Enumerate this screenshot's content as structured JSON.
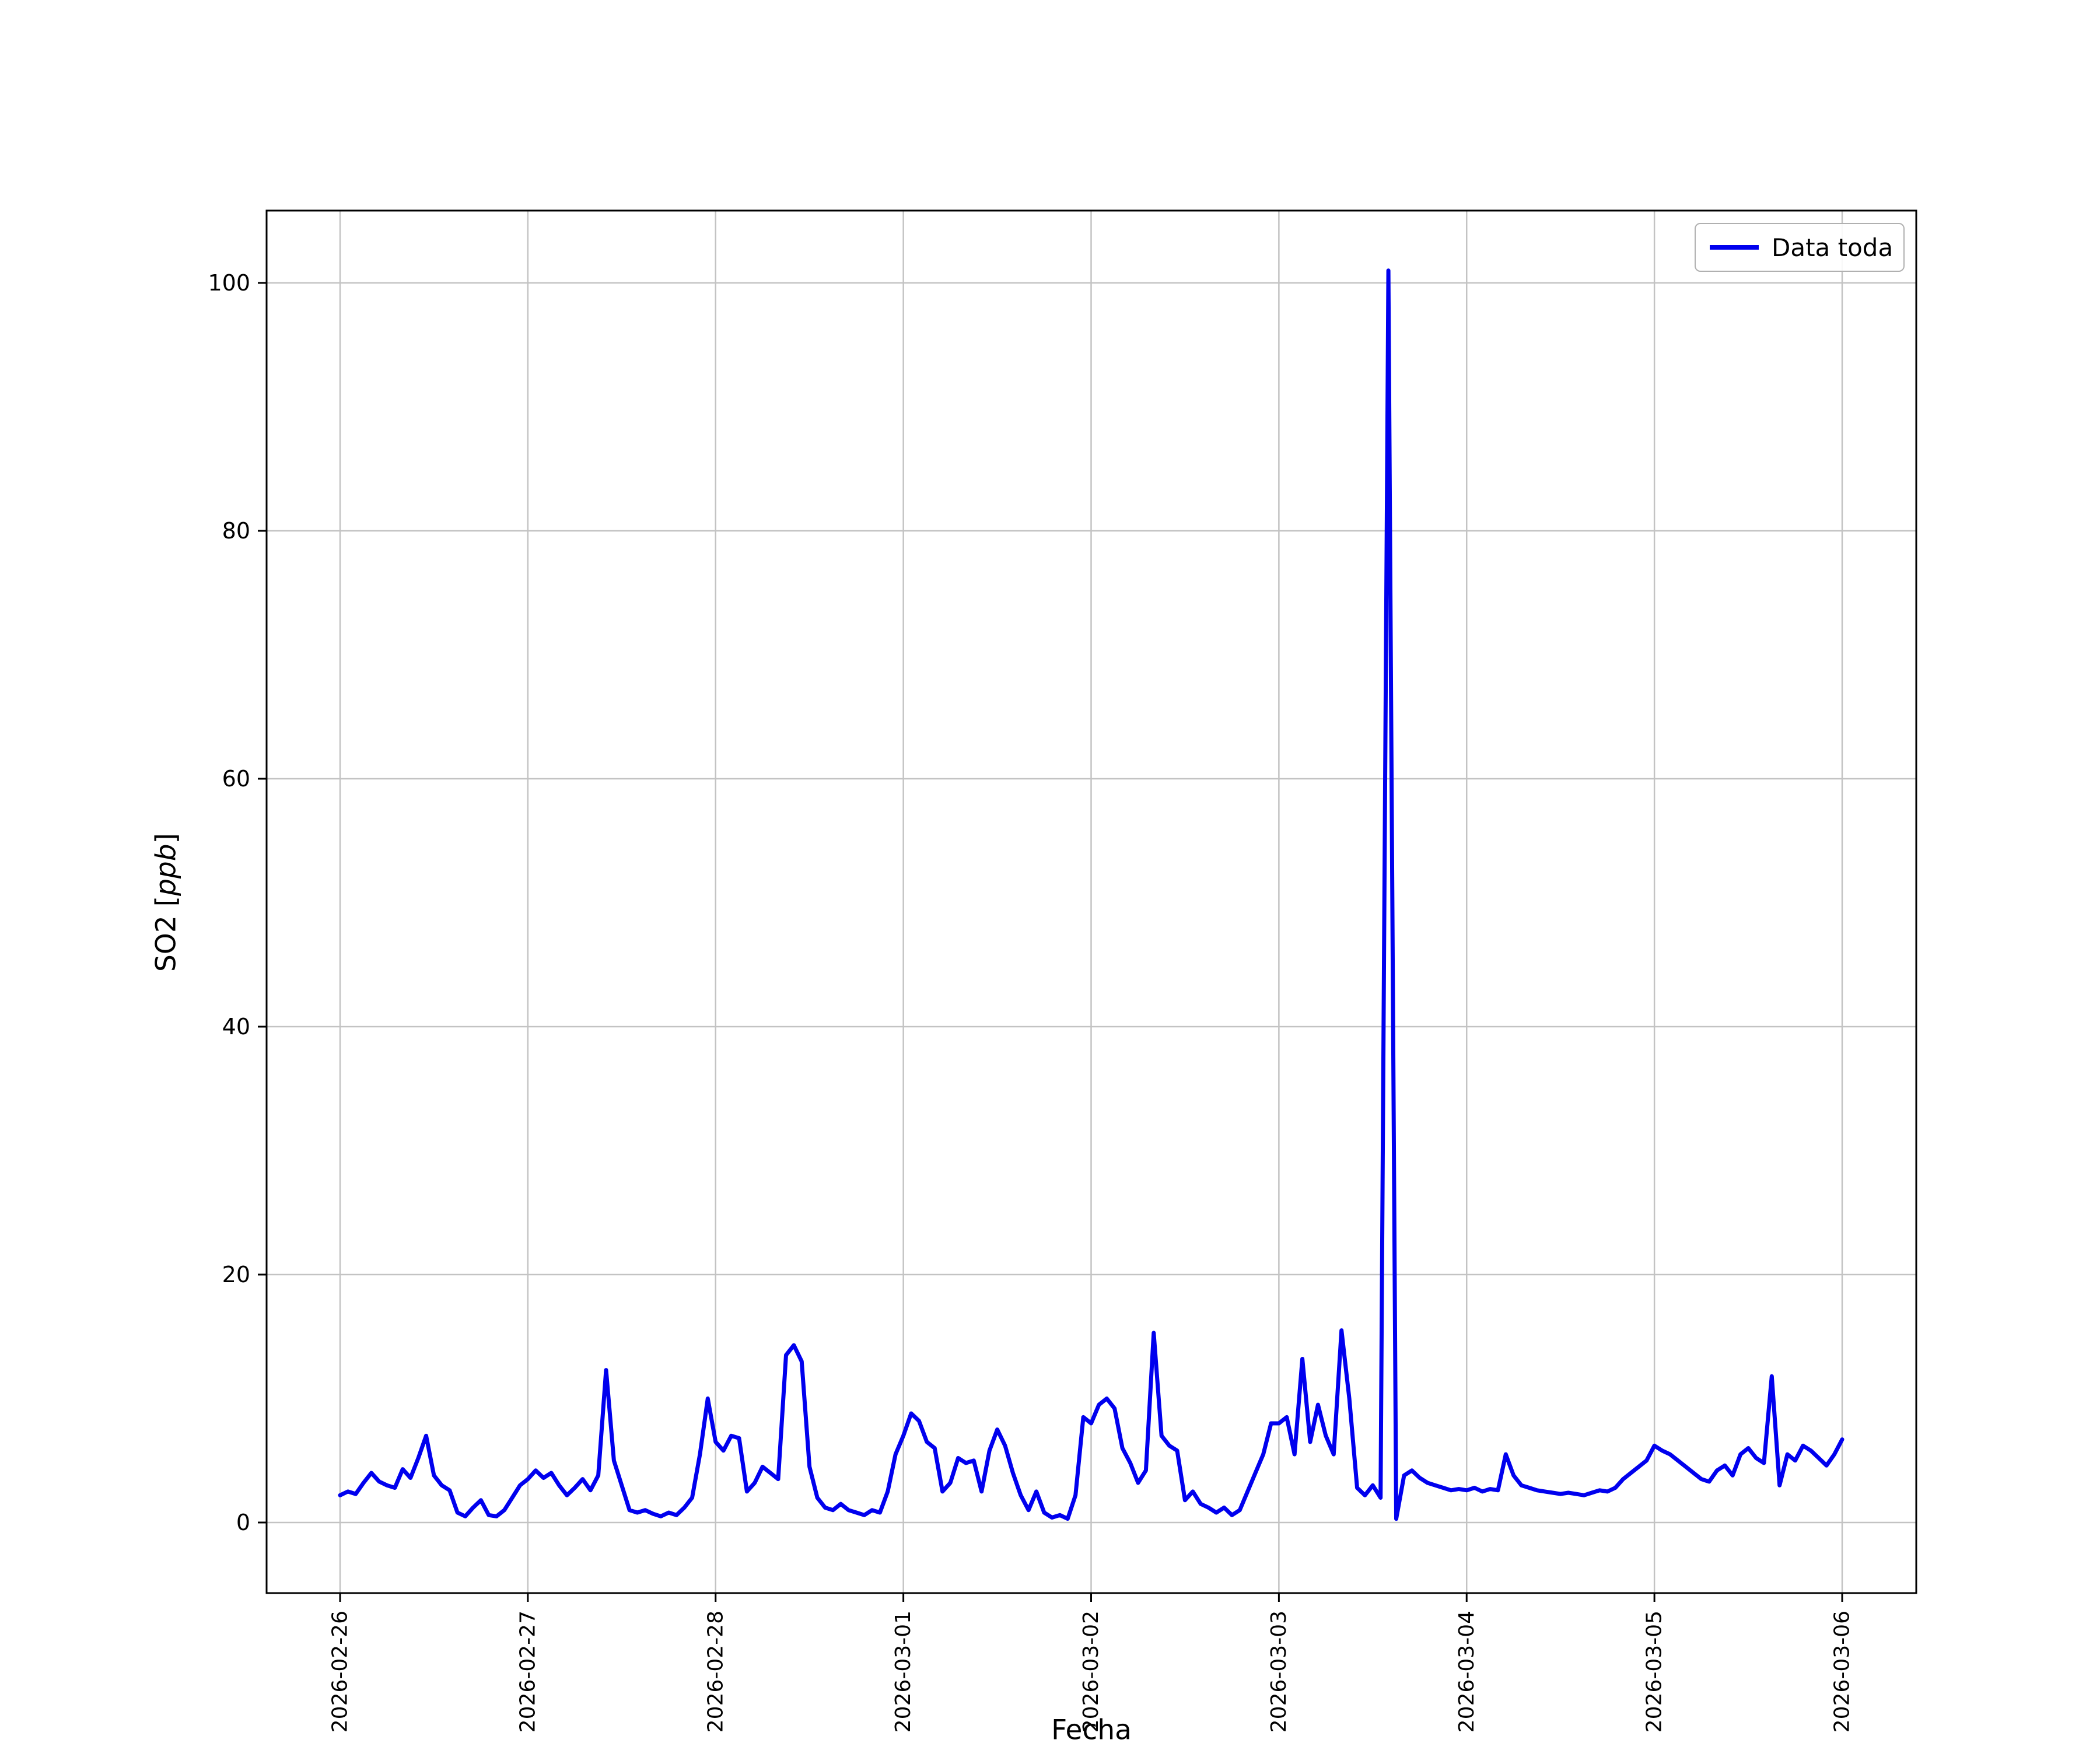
{
  "figure": {
    "background": "#ffffff",
    "ylabel_prefix": "SO2 [",
    "ylabel_math": "ppb",
    "ylabel_suffix": "]",
    "xlabel": "Fecha"
  },
  "legend": {
    "entries": [
      {
        "label": "Data toda",
        "color": "#0000ff"
      }
    ],
    "position": "upper-right",
    "border_color": "#b0b0b0"
  },
  "chart_data": {
    "type": "line",
    "title": "",
    "xlabel": "Fecha",
    "ylabel": "SO2 [ppb]",
    "grid": true,
    "grid_color": "#c3c3c3",
    "line_color": "#0000ee",
    "x_tick_labels": [
      "2026-02-26",
      "2026-02-27",
      "2026-02-28",
      "2026-03-01",
      "2026-03-02",
      "2026-03-03",
      "2026-03-04",
      "2026-03-05",
      "2026-03-06"
    ],
    "x_tick_rotation_deg": 90,
    "y_ticks": [
      0,
      20,
      40,
      60,
      80,
      100
    ],
    "ylim": [
      -5.7,
      105.8
    ],
    "series": [
      {
        "name": "Data toda",
        "start": "2026-02-26 00:00",
        "step_hours": 1,
        "values": [
          2.2,
          2.5,
          2.3,
          3.2,
          4.0,
          3.3,
          3.0,
          2.8,
          4.3,
          3.6,
          5.2,
          7.0,
          3.8,
          3.0,
          2.6,
          0.8,
          0.5,
          1.2,
          1.8,
          0.6,
          0.5,
          1.0,
          2.0,
          3.0,
          3.5,
          4.2,
          3.6,
          4.0,
          3.0,
          2.2,
          2.8,
          3.5,
          2.6,
          3.8,
          12.3,
          5.0,
          3.0,
          1.0,
          0.8,
          1.0,
          0.7,
          0.5,
          0.8,
          0.6,
          1.2,
          2.0,
          5.5,
          10.0,
          6.5,
          5.8,
          7.0,
          6.8,
          2.5,
          3.2,
          4.5,
          4.0,
          3.5,
          13.5,
          14.3,
          13.0,
          4.5,
          2.0,
          1.2,
          1.0,
          1.5,
          1.0,
          0.8,
          0.6,
          1.0,
          0.8,
          2.5,
          5.5,
          7.0,
          8.8,
          8.2,
          6.5,
          6.0,
          2.5,
          3.2,
          5.2,
          4.8,
          5.0,
          2.5,
          5.8,
          7.5,
          6.2,
          4.0,
          2.2,
          1.0,
          2.5,
          0.8,
          0.4,
          0.6,
          0.3,
          2.2,
          8.5,
          8.0,
          9.5,
          10.0,
          9.2,
          6.0,
          4.8,
          3.2,
          4.2,
          15.3,
          7.0,
          6.2,
          5.8,
          1.8,
          2.5,
          1.5,
          1.2,
          0.8,
          1.2,
          0.6,
          1.0,
          2.5,
          4.0,
          5.5,
          8.0,
          8.0,
          8.5,
          5.5,
          13.2,
          6.5,
          9.5,
          7.0,
          5.5,
          15.5,
          10.0,
          2.8,
          2.2,
          3.0,
          2.0,
          101.0,
          0.3,
          3.8,
          4.2,
          3.6,
          3.2,
          3.0,
          2.8,
          2.6,
          2.7,
          2.6,
          2.8,
          2.5,
          2.7,
          2.6,
          5.5,
          3.8,
          3.0,
          2.8,
          2.6,
          2.5,
          2.4,
          2.3,
          2.4,
          2.3,
          2.2,
          2.4,
          2.6,
          2.5,
          2.8,
          3.5,
          4.0,
          4.5,
          5.0,
          6.2,
          5.8,
          5.5,
          5.0,
          4.5,
          4.0,
          3.5,
          3.3,
          4.2,
          4.6,
          3.8,
          5.5,
          6.0,
          5.2,
          4.8,
          11.8,
          3.0,
          5.5,
          5.0,
          6.2,
          5.8,
          5.2,
          4.6,
          5.5,
          6.7
        ]
      }
    ]
  }
}
